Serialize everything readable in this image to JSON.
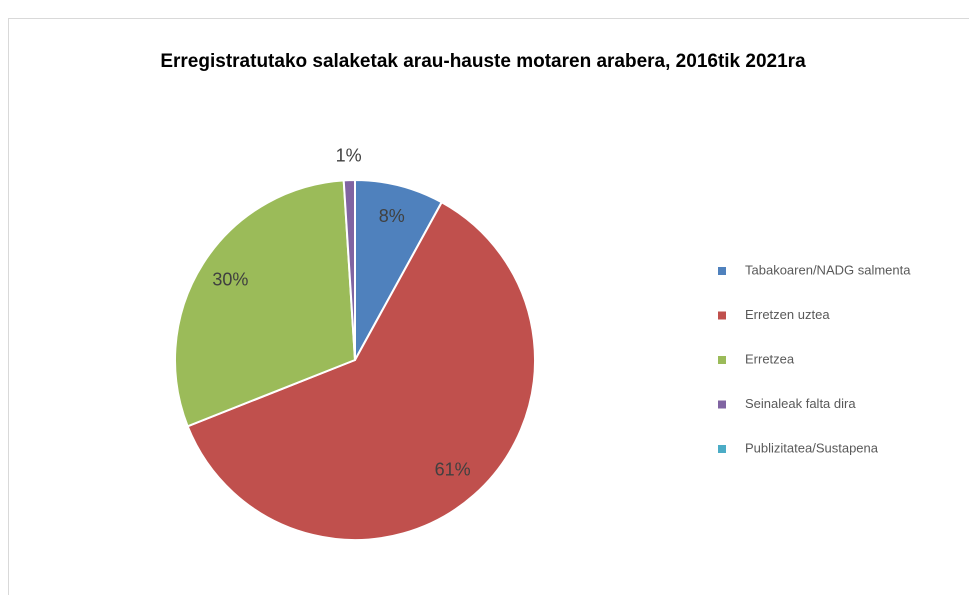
{
  "chart_data": {
    "type": "pie",
    "title": "Erregistratutako salaketak arau-hauste motaren arabera, 2016tik 2021ra",
    "categories": [
      "Tabakoaren/NADG salmenta",
      "Erretzen uztea",
      "Erretzea",
      "Seinaleak falta dira",
      "Publizitatea/Sustapena"
    ],
    "values": [
      8,
      61,
      30,
      1,
      0
    ],
    "value_labels": [
      "8%",
      "61%",
      "30%",
      "1%",
      null
    ],
    "colors": [
      "#4f81bd",
      "#c0504d",
      "#9bbb59",
      "#8064a2",
      "#4bacc6"
    ],
    "legend": "right"
  }
}
